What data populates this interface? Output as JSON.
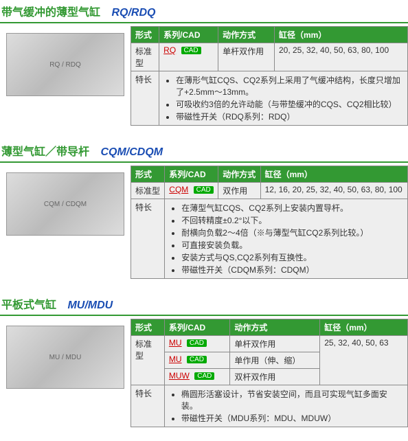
{
  "sections": [
    {
      "title_cn": "带气缓冲的薄型气缸",
      "title_en": "RQ/RDQ",
      "headers": [
        "形式",
        "系列/CAD",
        "动作方式",
        "缸径（mm）"
      ],
      "row": {
        "type": "标准型",
        "series": [
          {
            "code": "RQ",
            "cad": true
          }
        ],
        "action": "单杆双作用",
        "bore": "20, 25, 32, 40, 50, 63, 80, 100"
      },
      "feature_label": "特长",
      "features": [
        "在薄形气缸CQS、CQ2系列上采用了气缓冲结构，长度只增加了+2.5mm～13mm。",
        "可吸收约3倍的允许动能（与带垫缓冲的CQS、CQ2相比较）",
        "带磁性开关（RDQ系列：RDQ）"
      ]
    },
    {
      "title_cn": "薄型气缸／带导杆",
      "title_en": "CQM/CDQM",
      "headers": [
        "形式",
        "系列/CAD",
        "动作方式",
        "缸径（mm）"
      ],
      "row": {
        "type": "标准型",
        "series": [
          {
            "code": "CQM",
            "cad": true
          }
        ],
        "action": "双作用",
        "bore": "12, 16, 20, 25, 32, 40, 50, 63, 80, 100"
      },
      "feature_label": "特长",
      "features": [
        "在薄型气缸CQS、CQ2系列上安装内置导杆。",
        "不回转精度±0.2°以下。",
        "耐横向负载2～4倍（※与薄型气缸CQ2系列比较。）",
        "可直接安装负载。",
        "安装方式与QS,CQ2系列有互换性。",
        "带磁性开关（CDQM系列：CDQM）"
      ]
    },
    {
      "title_cn": "平板式气缸",
      "title_en": "MU/MDU",
      "headers": [
        "形式",
        "系列/CAD",
        "动作方式",
        "缸径（mm）"
      ],
      "rows": [
        {
          "series_code": "MU",
          "cad": true,
          "action": "单杆双作用"
        },
        {
          "series_code": "MU",
          "cad": true,
          "action": "单作用（伸、缩）"
        },
        {
          "series_code": "MUW",
          "cad": true,
          "action": "双杆双作用"
        }
      ],
      "type": "标准型",
      "bore": "25, 32, 40, 50, 63",
      "feature_label": "特长",
      "features": [
        "椭圆形活塞设计，节省安装空间，而且可实现气缸多面安装。",
        "带磁性开关（MDU系列：MDU、MDUW）"
      ]
    }
  ],
  "colors": {
    "header_bg": "#339933",
    "cell_bg": "#eeeeee",
    "border": "#8a8a8a",
    "title_cn": "#339933",
    "title_en": "#1a4db3",
    "series_code": "#cc0000",
    "cad_badge": "#00aa00"
  }
}
